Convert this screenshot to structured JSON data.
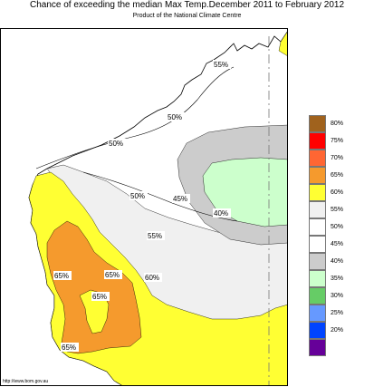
{
  "header": {
    "title": "Chance of exceeding the median Max Temp.December 2011 to February 2012",
    "subtitle": "Product of the National Climate Centre"
  },
  "footer": {
    "url": "http://www.bom.gov.au"
  },
  "map": {
    "region": "Western Australia",
    "contour_labels": [
      "55%",
      "50%",
      "50%",
      "50%",
      "45%",
      "40%",
      "55%",
      "60%",
      "65%",
      "65%",
      "65%",
      "65%"
    ],
    "colors": {
      "ocean": "#ffffff",
      "land_50": "#ffffff",
      "land_55": "#f0f0f0",
      "land_45": "#cccccc",
      "land_40": "#ccffcc",
      "land_60": "#ffff33",
      "land_65": "#f59a2d",
      "border": "#000000",
      "state_border": "#888888"
    }
  },
  "legend": {
    "items": [
      {
        "label": "80%",
        "color": "#a0621d"
      },
      {
        "label": "75%",
        "color": "#ff0000"
      },
      {
        "label": "70%",
        "color": "#ff6633"
      },
      {
        "label": "65%",
        "color": "#f59a2d"
      },
      {
        "label": "60%",
        "color": "#ffff33"
      },
      {
        "label": "55%",
        "color": "#f0f0f0"
      },
      {
        "label": "50%",
        "color": "#ffffff"
      },
      {
        "label": "45%",
        "color": "#ffffff"
      },
      {
        "label": "40%",
        "color": "#cccccc"
      },
      {
        "label": "35%",
        "color": "#ccffcc"
      },
      {
        "label": "30%",
        "color": "#66cc66"
      },
      {
        "label": "25%",
        "color": "#6699ff"
      },
      {
        "label": "20%",
        "color": "#0044ff"
      },
      {
        "label": "",
        "color": "#660099"
      }
    ]
  }
}
